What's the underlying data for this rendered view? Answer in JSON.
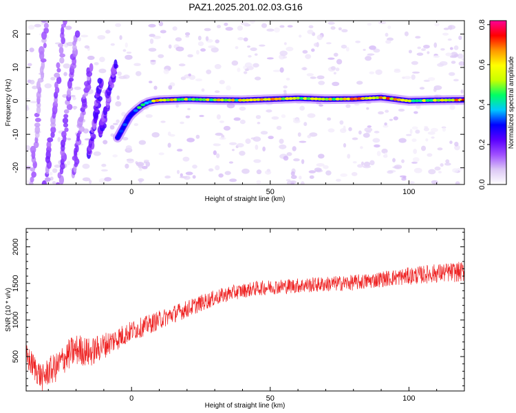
{
  "figure": {
    "title": "PAZ1.2025.201.02.03.G16"
  },
  "chart_data": [
    {
      "type": "heatmap",
      "xlabel": "Height of straight line (km)",
      "ylabel": "Frequency (Hz)",
      "xlim": [
        -38,
        120
      ],
      "ylim": [
        -25,
        24
      ],
      "xticks": [
        0,
        50,
        100
      ],
      "yticks": [
        -20,
        -10,
        0,
        10,
        20
      ],
      "colorbar": {
        "label": "Normalized spectral amplitude",
        "range": [
          0,
          0.82
        ],
        "ticks": [
          "0.0",
          "0.2",
          "0.4",
          "0.6",
          "0.8"
        ],
        "tick_values": [
          0.0,
          0.2,
          0.4,
          0.6,
          0.8
        ],
        "colormap": [
          "#ffffff",
          "#dcc8f5",
          "#a050ff",
          "#5a00ff",
          "#0000ff",
          "#00c8ff",
          "#00ff64",
          "#c8ff00",
          "#ffff00",
          "#ff9600",
          "#ff0000",
          "#ff0096"
        ]
      },
      "main_trace": {
        "x": [
          -5,
          -4,
          -3,
          -2,
          -1,
          0,
          2,
          4,
          6,
          8,
          10,
          20,
          30,
          40,
          50,
          60,
          70,
          80,
          90,
          95,
          100,
          110,
          120
        ],
        "y": [
          -11,
          -9.5,
          -8,
          -6.5,
          -5,
          -4,
          -2.5,
          -1.2,
          -0.4,
          0,
          0.2,
          0.5,
          0.3,
          0.2,
          0.5,
          0.8,
          0.5,
          0.6,
          1.0,
          0.5,
          0,
          0.2,
          0.3
        ],
        "amplitude": [
          0.3,
          0.32,
          0.35,
          0.35,
          0.38,
          0.38,
          0.4,
          0.42,
          0.45,
          0.55,
          0.6,
          0.6,
          0.6,
          0.55,
          0.6,
          0.62,
          0.6,
          0.62,
          0.72,
          0.6,
          0.55,
          0.6,
          0.65
        ]
      },
      "band_features": [
        {
          "x_bottom": -36,
          "x_top": -31,
          "y_bottom": -25,
          "y_top": 24,
          "amplitude": 0.12
        },
        {
          "x_bottom": -31,
          "x_top": -24,
          "y_bottom": -25,
          "y_top": 24,
          "amplitude": 0.15
        },
        {
          "x_bottom": -26,
          "x_top": -20,
          "y_bottom": -25,
          "y_top": 20,
          "amplitude": 0.15
        },
        {
          "x_bottom": -21,
          "x_top": -15,
          "y_bottom": -22,
          "y_top": 10,
          "amplitude": 0.15
        },
        {
          "x_bottom": -15,
          "x_top": -11,
          "y_bottom": -16,
          "y_top": 6,
          "amplitude": 0.2
        },
        {
          "x_bottom": -11,
          "x_top": -6,
          "y_bottom": -10,
          "y_top": 11,
          "amplitude": 0.2
        }
      ]
    },
    {
      "type": "line",
      "xlabel": "Height of straight line (km)",
      "ylabel": "SNR (10 * v/v)",
      "xlim": [
        -38,
        120
      ],
      "ylim": [
        30,
        2250
      ],
      "xticks": [
        0,
        50,
        100
      ],
      "yticks": [
        500,
        1000,
        1500,
        2000
      ],
      "color": "#ee2222",
      "trend": {
        "x": [
          -38,
          -35,
          -32,
          -30,
          -27,
          -25,
          -22,
          -19,
          -15,
          -10,
          -5,
          0,
          5,
          10,
          15,
          20,
          25,
          30,
          35,
          40,
          45,
          50,
          55,
          60,
          65,
          70,
          75,
          80,
          85,
          90,
          95,
          100,
          105,
          110,
          115,
          120
        ],
        "y": [
          500,
          350,
          200,
          300,
          350,
          450,
          550,
          600,
          550,
          650,
          750,
          850,
          920,
          1000,
          1080,
          1150,
          1230,
          1300,
          1360,
          1400,
          1430,
          1450,
          1460,
          1470,
          1480,
          1490,
          1500,
          1510,
          1530,
          1560,
          1580,
          1600,
          1620,
          1640,
          1650,
          1660
        ]
      },
      "noise_amplitude": {
        "x": [
          -38,
          -20,
          0,
          40,
          90,
          120
        ],
        "y": [
          180,
          220,
          140,
          100,
          110,
          140
        ]
      }
    }
  ]
}
